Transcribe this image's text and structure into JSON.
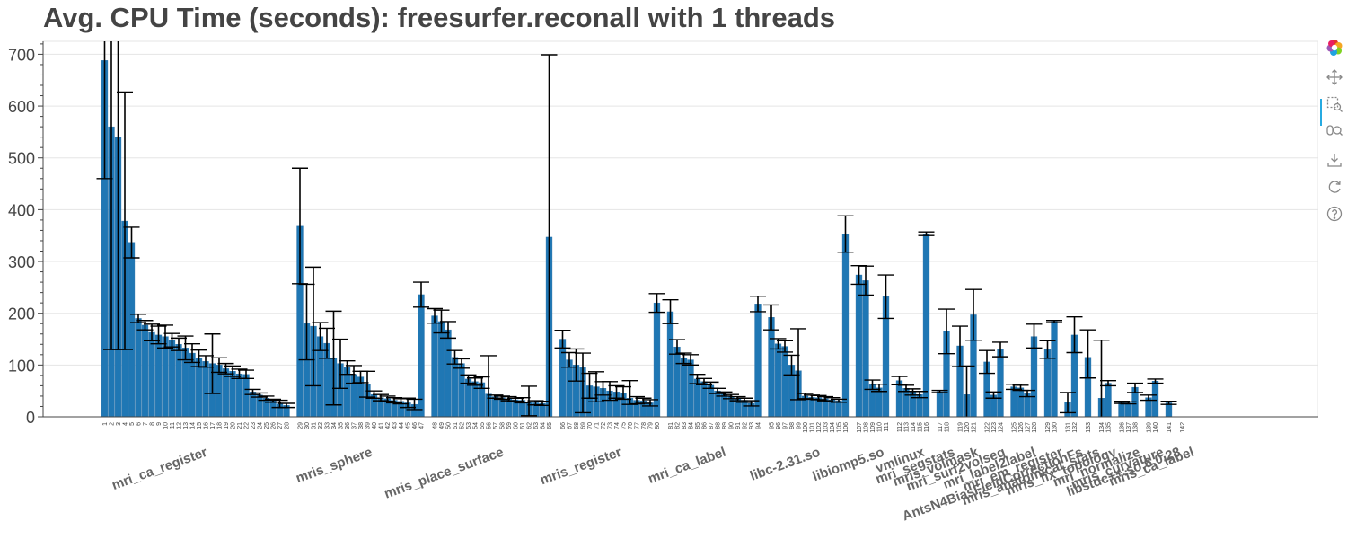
{
  "chart_data": {
    "type": "bar",
    "title": "Avg. CPU Time (seconds): freesurfer.reconall with 1 threads",
    "xlabel": "",
    "ylabel": "",
    "ylim": [
      0,
      725
    ],
    "yticks": [
      0,
      100,
      200,
      300,
      400,
      500,
      600,
      700
    ],
    "grid": "horizontal",
    "bar_color": "#1f77b4",
    "groups": [
      {
        "name": "mri_ca_register",
        "x": [
          1,
          2,
          3,
          4,
          5,
          6,
          7,
          8,
          9,
          10,
          11,
          12,
          13,
          14,
          15,
          16,
          17,
          18,
          19,
          20,
          21,
          22,
          23,
          24,
          25,
          26,
          27,
          28
        ]
      },
      {
        "name": "mris_sphere",
        "x": [
          29,
          30,
          31,
          32,
          33,
          34,
          35,
          36,
          37,
          38,
          39,
          40,
          41,
          42,
          43,
          44,
          45,
          46,
          47
        ]
      },
      {
        "name": "mris_place_surface",
        "x": [
          48,
          49,
          50,
          51,
          52,
          53,
          54,
          55,
          56,
          57,
          58,
          59,
          60,
          61,
          62,
          63,
          64,
          65
        ]
      },
      {
        "name": "mris_register",
        "x": [
          66,
          67,
          68,
          69,
          70,
          71,
          72,
          73,
          74,
          75,
          76,
          77,
          78,
          79,
          80
        ]
      },
      {
        "name": "mri_ca_label",
        "x": [
          81,
          82,
          83,
          84,
          85,
          86,
          87,
          88,
          89,
          90,
          91,
          92,
          93,
          94
        ]
      },
      {
        "name": "libc-2.31.so",
        "x": [
          95,
          96,
          97,
          98,
          99,
          100,
          101,
          102,
          103,
          104,
          105,
          106
        ]
      },
      {
        "name": "libiomp5.so",
        "x": [
          107,
          108,
          109,
          110,
          111
        ]
      },
      {
        "name": "vmlinux",
        "x": [
          112,
          113,
          114,
          115,
          116
        ]
      },
      {
        "name": "mri_segstats",
        "x": [
          117,
          118
        ]
      },
      {
        "name": "mris_volmask",
        "x": [
          119,
          120,
          121
        ]
      },
      {
        "name": "mri_surf2volseg",
        "x": [
          122,
          123,
          124
        ]
      },
      {
        "name": "mri_label2label",
        "x": [
          125,
          126,
          127,
          128
        ]
      },
      {
        "name": "mri_em_register",
        "x": [
          129,
          130
        ]
      },
      {
        "name": "AntsN4BiasFieldCorrectionFs",
        "x": [
          131,
          132
        ]
      },
      {
        "name": "mris_anatomical_stats",
        "x": [
          133
        ]
      },
      {
        "name": "mris_fix_topology",
        "x": [
          134,
          135
        ]
      },
      {
        "name": "mri_normalize",
        "x": [
          136,
          137,
          138
        ]
      },
      {
        "name": "mris_curvature",
        "x": [
          139,
          140
        ]
      },
      {
        "name": "libstdc++.so.6.0.28",
        "x": [
          141
        ]
      },
      {
        "name": "mris_ca_label",
        "x": [
          142
        ]
      }
    ],
    "values": [
      688,
      560,
      540,
      378,
      337,
      190,
      177,
      163,
      158,
      155,
      148,
      140,
      133,
      123,
      113,
      107,
      103,
      100,
      93,
      88,
      83,
      82,
      48,
      42,
      36,
      31,
      25,
      22,
      368,
      180,
      175,
      155,
      142,
      113,
      103,
      95,
      82,
      77,
      63,
      43,
      37,
      35,
      32,
      30,
      27,
      24,
      236,
      195,
      184,
      168,
      115,
      103,
      73,
      68,
      66,
      44,
      39,
      37,
      35,
      33,
      32,
      28,
      27,
      26,
      347,
      150,
      110,
      100,
      95,
      60,
      58,
      55,
      50,
      48,
      46,
      36,
      32,
      31,
      27,
      220,
      203,
      135,
      113,
      110,
      73,
      68,
      61,
      50,
      44,
      39,
      35,
      32,
      26,
      218,
      192,
      141,
      136,
      100,
      89,
      40,
      38,
      37,
      35,
      33,
      31,
      353,
      274,
      263,
      62,
      56,
      232,
      70,
      55,
      48,
      43,
      353,
      49,
      165,
      137,
      43,
      197,
      106,
      42,
      130,
      58,
      56,
      45,
      155,
      130,
      184,
      29,
      158,
      115,
      36,
      65,
      28,
      27,
      57,
      37,
      69,
      27
    ],
    "errors": [
      [
        460,
        725
      ],
      [
        130,
        725
      ],
      [
        130,
        725
      ],
      [
        130,
        627
      ],
      [
        307,
        366
      ],
      [
        182,
        198
      ],
      [
        168,
        186
      ],
      [
        147,
        179
      ],
      [
        141,
        175
      ],
      [
        133,
        177
      ],
      [
        135,
        161
      ],
      [
        128,
        152
      ],
      [
        110,
        156
      ],
      [
        105,
        141
      ],
      [
        97,
        129
      ],
      [
        96,
        118
      ],
      [
        45,
        160
      ],
      [
        86,
        114
      ],
      [
        83,
        103
      ],
      [
        78,
        98
      ],
      [
        74,
        92
      ],
      [
        74,
        90
      ],
      [
        43,
        53
      ],
      [
        38,
        46
      ],
      [
        32,
        40
      ],
      [
        28,
        34
      ],
      [
        18,
        32
      ],
      [
        18,
        26
      ],
      [
        257,
        480
      ],
      [
        110,
        256
      ],
      [
        60,
        289
      ],
      [
        128,
        182
      ],
      [
        113,
        171
      ],
      [
        23,
        204
      ],
      [
        55,
        150
      ],
      [
        82,
        108
      ],
      [
        65,
        99
      ],
      [
        66,
        88
      ],
      [
        38,
        88
      ],
      [
        36,
        50
      ],
      [
        31,
        43
      ],
      [
        30,
        40
      ],
      [
        27,
        37
      ],
      [
        25,
        35
      ],
      [
        18,
        36
      ],
      [
        14,
        34
      ],
      [
        212,
        260
      ],
      [
        181,
        209
      ],
      [
        162,
        206
      ],
      [
        152,
        184
      ],
      [
        102,
        128
      ],
      [
        94,
        112
      ],
      [
        65,
        81
      ],
      [
        61,
        75
      ],
      [
        55,
        77
      ],
      [
        0,
        118
      ],
      [
        36,
        42
      ],
      [
        34,
        40
      ],
      [
        31,
        39
      ],
      [
        30,
        36
      ],
      [
        27,
        37
      ],
      [
        2,
        59
      ],
      [
        23,
        31
      ],
      [
        22,
        30
      ],
      [
        0,
        699
      ],
      [
        133,
        167
      ],
      [
        96,
        124
      ],
      [
        69,
        131
      ],
      [
        8,
        123
      ],
      [
        36,
        84
      ],
      [
        29,
        87
      ],
      [
        42,
        68
      ],
      [
        32,
        68
      ],
      [
        36,
        60
      ],
      [
        34,
        58
      ],
      [
        24,
        70
      ],
      [
        25,
        39
      ],
      [
        26,
        36
      ],
      [
        21,
        33
      ],
      [
        202,
        238
      ],
      [
        180,
        226
      ],
      [
        121,
        149
      ],
      [
        103,
        123
      ],
      [
        100,
        120
      ],
      [
        64,
        82
      ],
      [
        62,
        74
      ],
      [
        55,
        67
      ],
      [
        45,
        55
      ],
      [
        40,
        48
      ],
      [
        35,
        43
      ],
      [
        31,
        39
      ],
      [
        28,
        36
      ],
      [
        21,
        31
      ],
      [
        203,
        233
      ],
      [
        168,
        216
      ],
      [
        131,
        151
      ],
      [
        125,
        147
      ],
      [
        81,
        119
      ],
      [
        33,
        170
      ],
      [
        35,
        45
      ],
      [
        34,
        42
      ],
      [
        33,
        41
      ],
      [
        31,
        39
      ],
      [
        29,
        37
      ],
      [
        28,
        34
      ],
      [
        318,
        388
      ],
      [
        256,
        292
      ],
      [
        235,
        291
      ],
      [
        53,
        71
      ],
      [
        49,
        63
      ],
      [
        190,
        274
      ],
      [
        62,
        78
      ],
      [
        49,
        61
      ],
      [
        42,
        54
      ],
      [
        37,
        49
      ],
      [
        350,
        357
      ],
      [
        47,
        51
      ],
      [
        122,
        208
      ],
      [
        97,
        175
      ],
      [
        0,
        98
      ],
      [
        148,
        246
      ],
      [
        84,
        128
      ],
      [
        36,
        48
      ],
      [
        116,
        144
      ],
      [
        53,
        63
      ],
      [
        51,
        61
      ],
      [
        39,
        51
      ],
      [
        133,
        179
      ],
      [
        113,
        147
      ],
      [
        182,
        186
      ],
      [
        8,
        47
      ],
      [
        124,
        193
      ],
      [
        75,
        168
      ],
      [
        0,
        148
      ],
      [
        60,
        70
      ],
      [
        26,
        30
      ],
      [
        25,
        29
      ],
      [
        47,
        65
      ],
      [
        32,
        42
      ],
      [
        65,
        73
      ],
      [
        24,
        30
      ]
    ]
  },
  "toolbar": {
    "tools": [
      "bokeh-logo-icon",
      "pan-icon",
      "box-zoom-icon",
      "wheel-zoom-icon",
      "save-icon",
      "reset-icon",
      "help-icon"
    ]
  }
}
